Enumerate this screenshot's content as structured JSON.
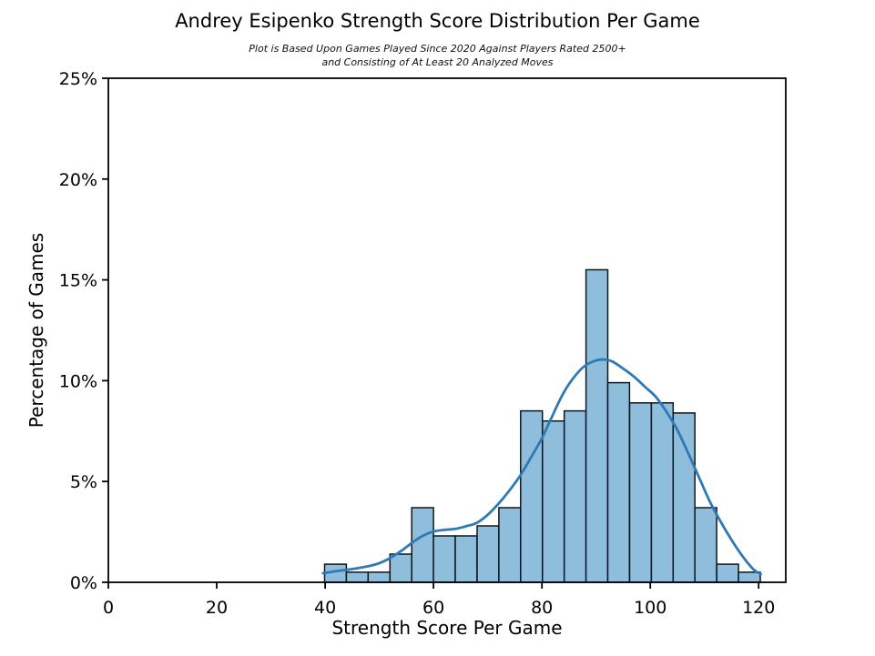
{
  "chart_data": {
    "type": "histogram",
    "title": "Andrey Esipenko Strength Score Distribution Per Game",
    "subtitle_lines": [
      "Plot is Based Upon Games Played Since 2020 Against Players Rated 2500+",
      "and Consisting of At Least 20 Analyzed Moves"
    ],
    "xlabel": "Strength Score Per Game",
    "ylabel": "Percentage of Games",
    "xlim": [
      0,
      125
    ],
    "ylim": [
      0,
      25
    ],
    "grid": false,
    "legend": "none",
    "xticks": {
      "values": [
        0,
        20,
        40,
        60,
        80,
        100,
        120
      ],
      "labels": [
        "0",
        "20",
        "40",
        "60",
        "80",
        "100",
        "120"
      ]
    },
    "yticks": {
      "values": [
        0,
        5,
        10,
        15,
        20,
        25
      ],
      "labels": [
        "0%",
        "5%",
        "10%",
        "15%",
        "20%",
        "25%"
      ]
    },
    "histogram": {
      "bin_start": 39.9,
      "bin_width": 4.02,
      "heights_pct": [
        0.9,
        0.5,
        0.5,
        1.4,
        3.7,
        2.3,
        2.3,
        2.8,
        3.7,
        8.5,
        8.0,
        8.5,
        15.5,
        9.9,
        8.9,
        8.9,
        8.4,
        3.7,
        0.9,
        0.5
      ]
    },
    "kde_curve": {
      "x": [
        39.6,
        42,
        44,
        46,
        48,
        50,
        52,
        54,
        56,
        58,
        60,
        62,
        64,
        66,
        68,
        70,
        72,
        74,
        76,
        78,
        80,
        82,
        84,
        86,
        88,
        90,
        91.5,
        93,
        95,
        97,
        99,
        101,
        103,
        105,
        107,
        109,
        111,
        113,
        115,
        117,
        119,
        120.4
      ],
      "y_pct": [
        0.45,
        0.55,
        0.62,
        0.7,
        0.8,
        0.95,
        1.2,
        1.55,
        1.95,
        2.3,
        2.52,
        2.6,
        2.65,
        2.78,
        2.95,
        3.35,
        3.9,
        4.55,
        5.3,
        6.2,
        7.15,
        8.3,
        9.4,
        10.2,
        10.75,
        11.0,
        11.05,
        10.95,
        10.6,
        10.2,
        9.7,
        9.2,
        8.45,
        7.55,
        6.4,
        5.2,
        4.0,
        3.0,
        2.1,
        1.3,
        0.65,
        0.4
      ]
    },
    "colors": {
      "bar_fill": "#8fbddc",
      "bar_edge": "#10151c",
      "kde_line": "#2f7ab5",
      "axis": "#000000",
      "background": "#ffffff"
    }
  }
}
